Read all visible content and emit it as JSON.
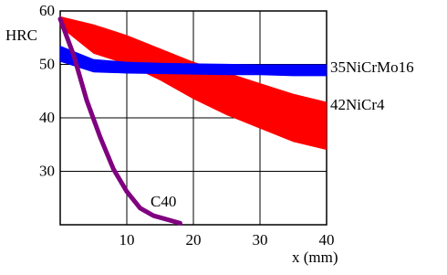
{
  "chart_data": {
    "type": "band",
    "ylabel": "HRC",
    "xlabel": "x (mm)",
    "xlim": [
      0,
      40
    ],
    "ylim": [
      20,
      60
    ],
    "xticks": [
      10,
      20,
      30,
      40
    ],
    "yticks": [
      30,
      40,
      50,
      60
    ],
    "grid": true,
    "series": [
      {
        "name": "42NiCr4",
        "color": "#ff0000",
        "type": "band",
        "x": [
          0,
          5,
          10,
          15,
          20,
          25,
          30,
          35,
          40
        ],
        "high": [
          59,
          57.5,
          55.5,
          53,
          50.5,
          48.5,
          46.5,
          44.5,
          43
        ],
        "low": [
          57,
          52,
          50,
          47,
          43.5,
          40.5,
          38,
          35.5,
          34
        ]
      },
      {
        "name": "35NiCrMo16",
        "color": "#0000ff",
        "type": "band",
        "x": [
          0,
          5,
          10,
          15,
          20,
          25,
          30,
          35,
          40
        ],
        "high": [
          53.5,
          51,
          50.5,
          50.3,
          50.2,
          50.1,
          50,
          50,
          50
        ],
        "low": [
          50.5,
          48.5,
          48.3,
          48.2,
          48.1,
          48,
          48,
          47.8,
          47.8
        ]
      },
      {
        "name": "C40",
        "color": "#800080",
        "type": "line",
        "x": [
          0,
          2,
          4,
          6,
          8,
          10,
          12,
          14,
          18
        ],
        "values": [
          58.5,
          51.8,
          43.2,
          36.4,
          30.4,
          26.2,
          23.1,
          21.7,
          20.3
        ]
      }
    ]
  }
}
